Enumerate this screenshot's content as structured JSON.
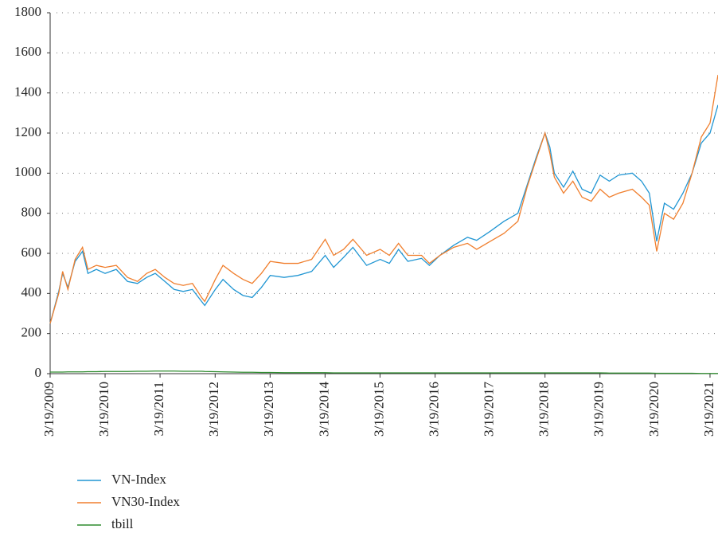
{
  "chart_data": {
    "type": "line",
    "x": [
      "2009-03-19",
      "2009-05-15",
      "2009-06-10",
      "2009-07-15",
      "2009-09-01",
      "2009-10-20",
      "2009-11-25",
      "2010-01-20",
      "2010-03-19",
      "2010-06-01",
      "2010-08-15",
      "2010-10-20",
      "2010-12-20",
      "2011-02-15",
      "2011-04-20",
      "2011-06-20",
      "2011-08-20",
      "2011-10-20",
      "2011-12-20",
      "2012-01-10",
      "2012-03-20",
      "2012-05-10",
      "2012-07-20",
      "2012-09-20",
      "2012-11-20",
      "2013-01-20",
      "2013-03-20",
      "2013-06-20",
      "2013-09-20",
      "2013-12-20",
      "2014-03-20",
      "2014-05-15",
      "2014-07-20",
      "2014-09-20",
      "2014-12-20",
      "2015-03-20",
      "2015-05-20",
      "2015-07-20",
      "2015-09-20",
      "2015-12-20",
      "2016-02-10",
      "2016-04-20",
      "2016-07-20",
      "2016-10-20",
      "2016-12-20",
      "2017-03-20",
      "2017-06-20",
      "2017-09-20",
      "2017-11-20",
      "2018-01-20",
      "2018-03-19",
      "2018-04-20",
      "2018-05-20",
      "2018-07-20",
      "2018-09-20",
      "2018-11-20",
      "2019-01-20",
      "2019-03-20",
      "2019-05-20",
      "2019-07-20",
      "2019-10-20",
      "2019-12-20",
      "2020-02-10",
      "2020-03-30",
      "2020-05-20",
      "2020-07-20",
      "2020-09-20",
      "2020-11-20",
      "2021-01-20",
      "2021-03-19",
      "2021-05-11"
    ],
    "series": [
      {
        "name": "VN-Index",
        "color": "#2196d3",
        "values": [
          250,
          410,
          500,
          430,
          560,
          610,
          500,
          520,
          500,
          520,
          460,
          450,
          480,
          500,
          460,
          420,
          410,
          420,
          360,
          340,
          420,
          470,
          420,
          390,
          380,
          430,
          490,
          480,
          490,
          510,
          590,
          530,
          580,
          630,
          540,
          570,
          550,
          620,
          560,
          575,
          540,
          590,
          640,
          680,
          665,
          710,
          760,
          800,
          940,
          1080,
          1200,
          1130,
          1000,
          930,
          1010,
          920,
          900,
          990,
          960,
          990,
          1000,
          960,
          900,
          660,
          850,
          820,
          900,
          1000,
          1150,
          1200,
          1340
        ]
      },
      {
        "name": "VN30-Index",
        "color": "#f07f2e",
        "values": [
          250,
          400,
          510,
          420,
          570,
          630,
          520,
          540,
          530,
          540,
          480,
          460,
          500,
          520,
          480,
          450,
          440,
          450,
          380,
          360,
          470,
          540,
          500,
          470,
          450,
          500,
          560,
          550,
          550,
          570,
          670,
          590,
          620,
          670,
          590,
          620,
          590,
          650,
          590,
          590,
          550,
          590,
          630,
          650,
          620,
          660,
          700,
          760,
          930,
          1070,
          1200,
          1100,
          980,
          900,
          960,
          880,
          860,
          920,
          880,
          900,
          920,
          880,
          840,
          610,
          800,
          770,
          850,
          1000,
          1180,
          1250,
          1490
        ]
      },
      {
        "name": "tbill",
        "color": "#2e8b2e",
        "values": [
          8,
          8,
          8,
          9,
          9,
          9,
          10,
          10,
          11,
          11,
          11,
          12,
          12,
          13,
          13,
          13,
          12,
          12,
          12,
          11,
          10,
          9,
          8,
          7,
          7,
          6,
          6,
          5,
          5,
          5,
          5,
          4,
          4,
          4,
          4,
          4,
          4,
          4,
          4,
          4,
          4,
          4,
          4,
          4,
          4,
          4,
          4,
          4,
          4,
          4,
          4,
          4,
          4,
          4,
          4,
          4,
          4,
          4,
          3,
          3,
          3,
          3,
          3,
          2,
          2,
          2,
          2,
          2,
          1,
          1,
          1
        ]
      }
    ],
    "xlim": [
      "2009-03-19",
      "2021-05-11"
    ],
    "xticks": [
      {
        "value": "2009-03-19",
        "label": "3/19/2009"
      },
      {
        "value": "2010-03-19",
        "label": "3/19/2010"
      },
      {
        "value": "2011-03-19",
        "label": "3/19/2011"
      },
      {
        "value": "2012-03-19",
        "label": "3/19/2012"
      },
      {
        "value": "2013-03-19",
        "label": "3/19/2013"
      },
      {
        "value": "2014-03-19",
        "label": "3/19/2014"
      },
      {
        "value": "2015-03-19",
        "label": "3/19/2015"
      },
      {
        "value": "2016-03-19",
        "label": "3/19/2016"
      },
      {
        "value": "2017-03-19",
        "label": "3/19/2017"
      },
      {
        "value": "2018-03-19",
        "label": "3/19/2018"
      },
      {
        "value": "2019-03-19",
        "label": "3/19/2019"
      },
      {
        "value": "2020-03-19",
        "label": "3/19/2020"
      },
      {
        "value": "2021-03-19",
        "label": "3/19/2021"
      }
    ],
    "ylim": [
      0,
      1800
    ],
    "yticks": [
      0,
      200,
      400,
      600,
      800,
      1000,
      1200,
      1400,
      1600,
      1800
    ],
    "grid": true,
    "legend": "bottom-left"
  }
}
